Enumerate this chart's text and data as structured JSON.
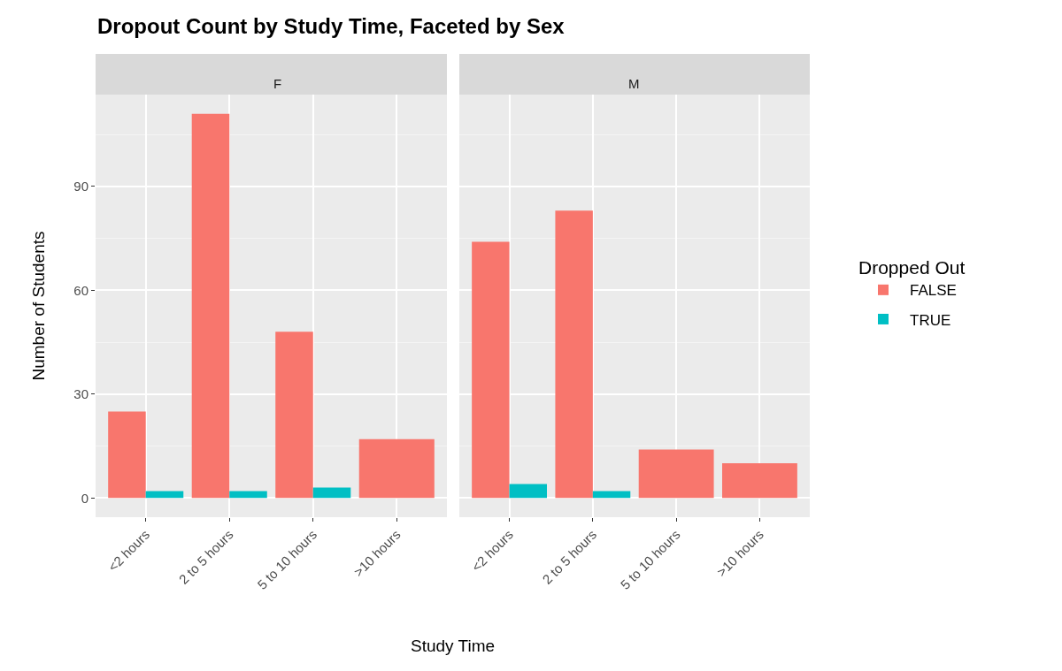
{
  "chart_data": [
    {
      "type": "bar",
      "title": "F",
      "legend": "right",
      "legend_title": "Dropped Out",
      "annotations": [
        "Dropout Count by Study Time, Faceted by Sex"
      ],
      "xlabel": "Study Time",
      "ylabel": "Number of Students",
      "categories": [
        "<2 hours",
        "2 to 5 hours",
        "5 to 10 hours",
        ">10 hours"
      ],
      "series": [
        {
          "name": "FALSE",
          "color": "#f8766d",
          "values": [
            25,
            111,
            48,
            17
          ]
        },
        {
          "name": "TRUE",
          "color": "#00bfc4",
          "values": [
            2,
            2,
            3,
            null
          ]
        }
      ],
      "ylim": [
        -5.55,
        116.55
      ],
      "yticks": [
        0,
        30,
        60,
        90
      ],
      "grid": true
    },
    {
      "type": "bar",
      "title": "M",
      "categories": [
        "<2 hours",
        "2 to 5 hours",
        "5 to 10 hours",
        ">10 hours"
      ],
      "series": [
        {
          "color": "#f8766d",
          "values": [
            74,
            83,
            14,
            10
          ]
        },
        {
          "color": "#00bfc4",
          "values": [
            4,
            2,
            null,
            null
          ]
        }
      ],
      "ylim": [
        -5.55,
        116.55
      ],
      "yticks": [
        0,
        30,
        60,
        90
      ],
      "grid": true,
      "tick_labels": "x"
    }
  ]
}
